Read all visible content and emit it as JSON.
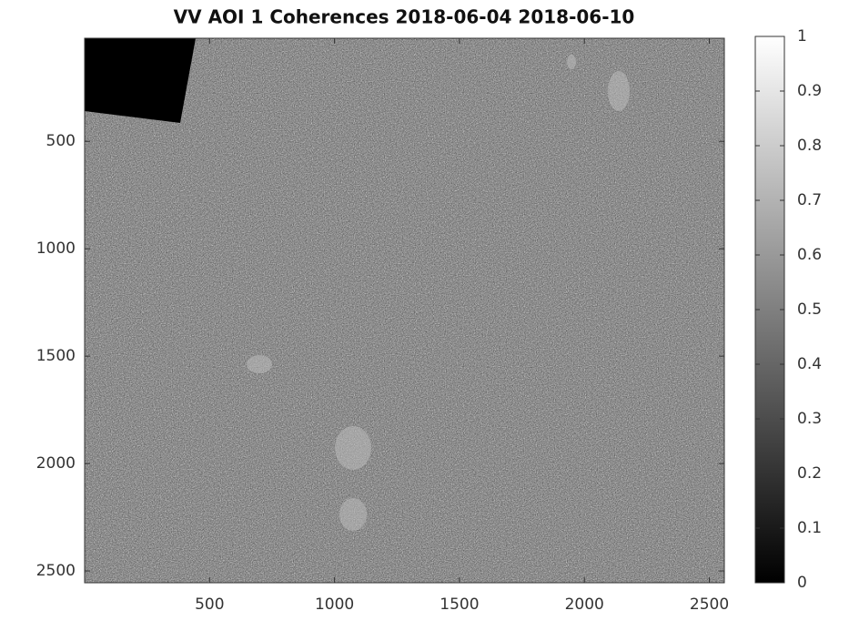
{
  "chart_data": {
    "type": "image",
    "title": "VV AOI 1 Coherences 2018-06-04 2018-06-10",
    "xlim": [
      0,
      2560
    ],
    "xticks": [
      500,
      1000,
      1500,
      2000,
      2500
    ],
    "ylim": [
      20,
      2555
    ],
    "yticks": [
      500,
      1000,
      1500,
      2000,
      2500
    ],
    "y_reversed": true,
    "colormap": [
      "#000000",
      "#ffffff"
    ],
    "clim": [
      0,
      1
    ],
    "cticks": [
      0,
      0.1,
      0.2,
      0.3,
      0.4,
      0.5,
      0.6,
      0.7,
      0.8,
      0.9,
      1
    ]
  }
}
